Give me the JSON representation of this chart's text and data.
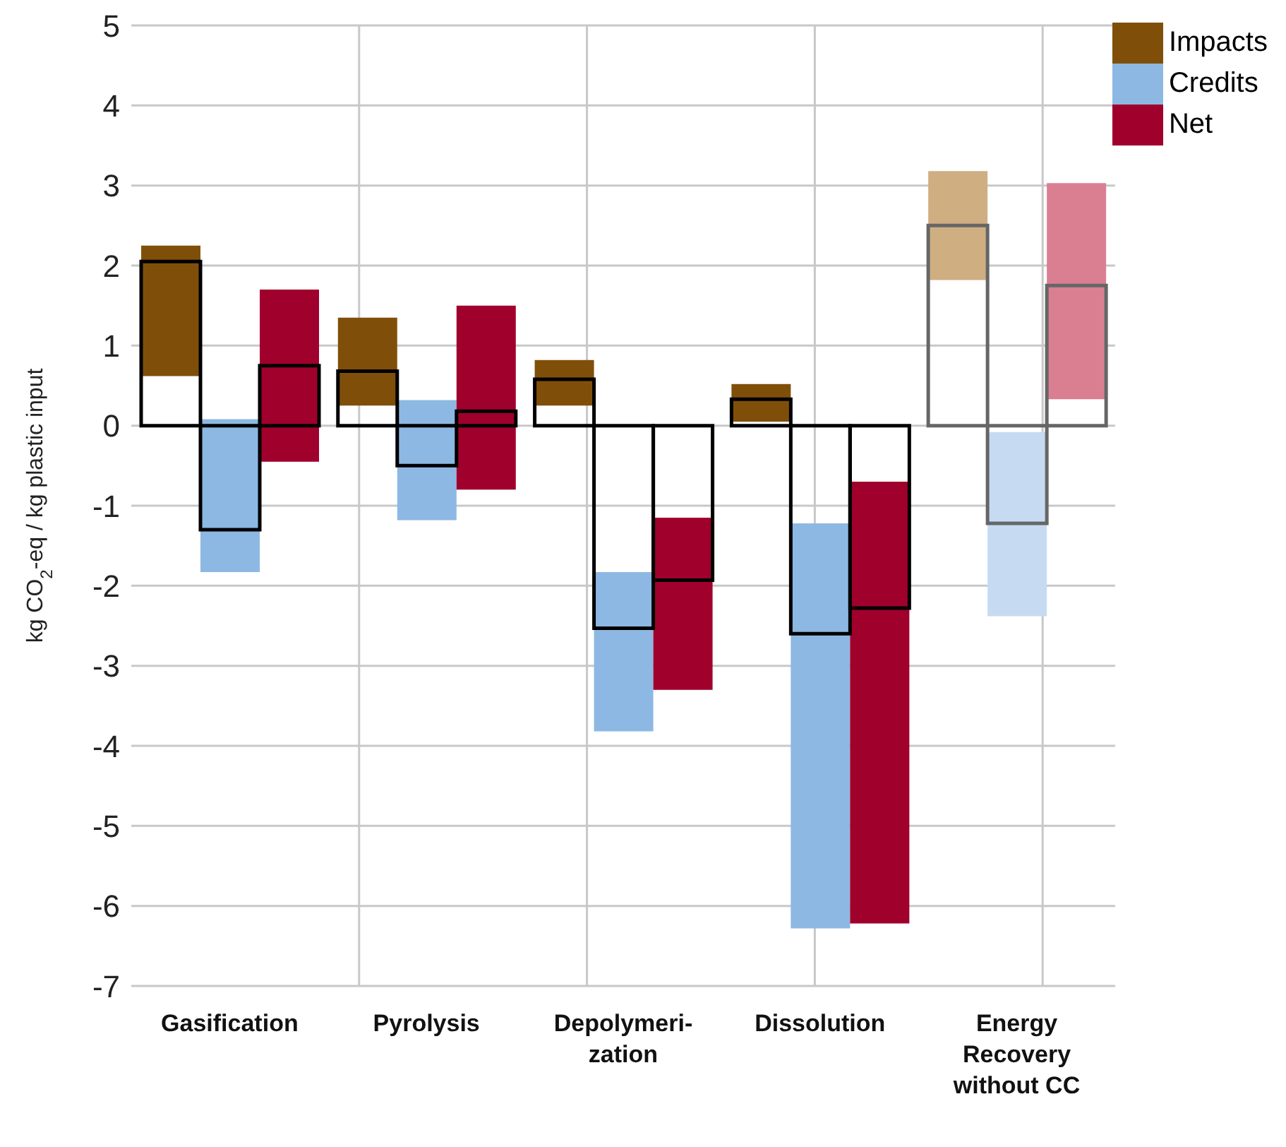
{
  "chart_data": {
    "type": "bar",
    "ylabel": "kg CO$_{2}$-eq / kg plastic input",
    "categories": [
      "Gasification",
      "Pyrolysis",
      "Depolymeri-\nzation",
      "Dissolution",
      "Energy\nRecovery\nwithout CC"
    ],
    "series": [
      {
        "name": "Impacts",
        "color": "#7f4f0a",
        "colors": [
          "#7f4f0a",
          "#7f4f0a",
          "#7f4f0a",
          "#7f4f0a",
          "#cfae82"
        ],
        "base": [
          0.62,
          0.25,
          0.25,
          0.05,
          1.82
        ],
        "values": [
          1.63,
          1.1,
          0.57,
          0.47,
          1.36
        ]
      },
      {
        "name": "Credits",
        "color": "#8db8e3",
        "colors": [
          "#8db8e3",
          "#8db8e3",
          "#8db8e3",
          "#8db8e3",
          "#c6dbf2"
        ],
        "base": [
          -1.83,
          -1.18,
          -3.82,
          -6.28,
          -2.38
        ],
        "values": [
          1.91,
          1.5,
          1.99,
          5.06,
          2.3
        ]
      },
      {
        "name": "Net",
        "color": "#a0002c",
        "colors": [
          "#a0002c",
          "#a0002c",
          "#a0002c",
          "#a0002c",
          "#da7f92"
        ],
        "base": [
          -0.45,
          -0.8,
          -3.3,
          -6.22,
          0.33
        ],
        "values": [
          2.15,
          2.3,
          2.15,
          5.52,
          2.7
        ]
      },
      {
        "color": "#000000",
        "colors": [
          "#000000",
          "#000000",
          "#000000",
          "#000000",
          "#666666"
        ],
        "values": [
          2.05,
          0.68,
          0.58,
          0.33,
          2.5
        ]
      },
      {
        "color": "#000000",
        "colors": [
          "#000000",
          "#000000",
          "#000000",
          "#000000",
          "#666666"
        ],
        "values": [
          -1.3,
          -0.5,
          -2.53,
          -2.6,
          -1.22
        ]
      },
      {
        "color": "#000000",
        "colors": [
          "#000000",
          "#000000",
          "#000000",
          "#000000",
          "#666666"
        ],
        "values": [
          0.75,
          0.18,
          -1.93,
          -2.28,
          1.75
        ]
      }
    ],
    "ylim": [
      -7,
      5
    ],
    "yticks": [
      -7,
      -6,
      -5,
      -4,
      -3,
      -2,
      -1,
      0,
      1,
      2,
      3,
      4,
      5
    ],
    "grid": true,
    "legend": "top right"
  }
}
